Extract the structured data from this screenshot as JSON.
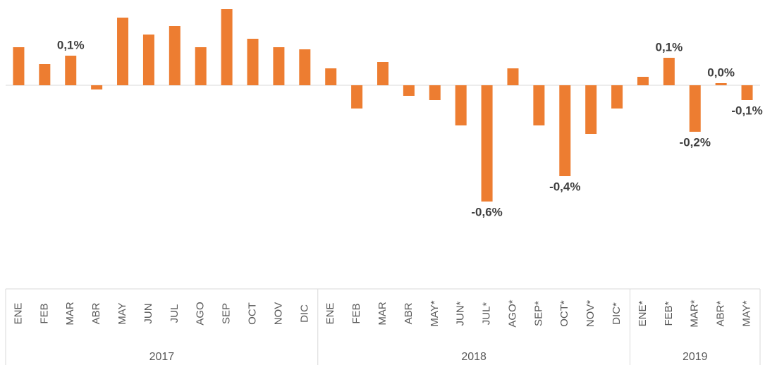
{
  "chart_data": {
    "type": "bar",
    "color": "#ed7d31",
    "ylim": [
      -0.7,
      0.4
    ],
    "groups": [
      {
        "label": "2017",
        "categories": [
          "ENE",
          "FEB",
          "MAR",
          "ABR",
          "MAY",
          "JUN",
          "JUL",
          "AGO",
          "SEP",
          "OCT",
          "NOV",
          "DIC"
        ],
        "values": [
          0.18,
          0.1,
          0.14,
          -0.02,
          0.32,
          0.24,
          0.28,
          0.18,
          0.36,
          0.22,
          0.18,
          0.17
        ],
        "value_labels": [
          null,
          null,
          "0,1%",
          null,
          null,
          null,
          null,
          null,
          null,
          null,
          null,
          null
        ]
      },
      {
        "label": "2018",
        "categories": [
          "ENE",
          "FEB",
          "MAR",
          "ABR",
          "MAY*",
          "JUN*",
          "JUL*",
          "AGO*",
          "SEP*",
          "OCT*",
          "NOV*",
          "DIC*"
        ],
        "values": [
          0.08,
          -0.11,
          0.11,
          -0.05,
          -0.07,
          -0.19,
          -0.55,
          0.08,
          -0.19,
          -0.43,
          -0.23,
          -0.11
        ],
        "value_labels": [
          null,
          null,
          null,
          null,
          null,
          null,
          "-0,6%",
          null,
          null,
          "-0,4%",
          null,
          null
        ]
      },
      {
        "label": "2019",
        "categories": [
          "ENE*",
          "FEB*",
          "MAR*",
          "ABR*",
          "MAY*"
        ],
        "values": [
          0.04,
          0.13,
          -0.22,
          0.01,
          -0.07
        ],
        "value_labels": [
          null,
          "0,1%",
          "-0,2%",
          "0,0%",
          "-0,1%"
        ]
      }
    ]
  }
}
